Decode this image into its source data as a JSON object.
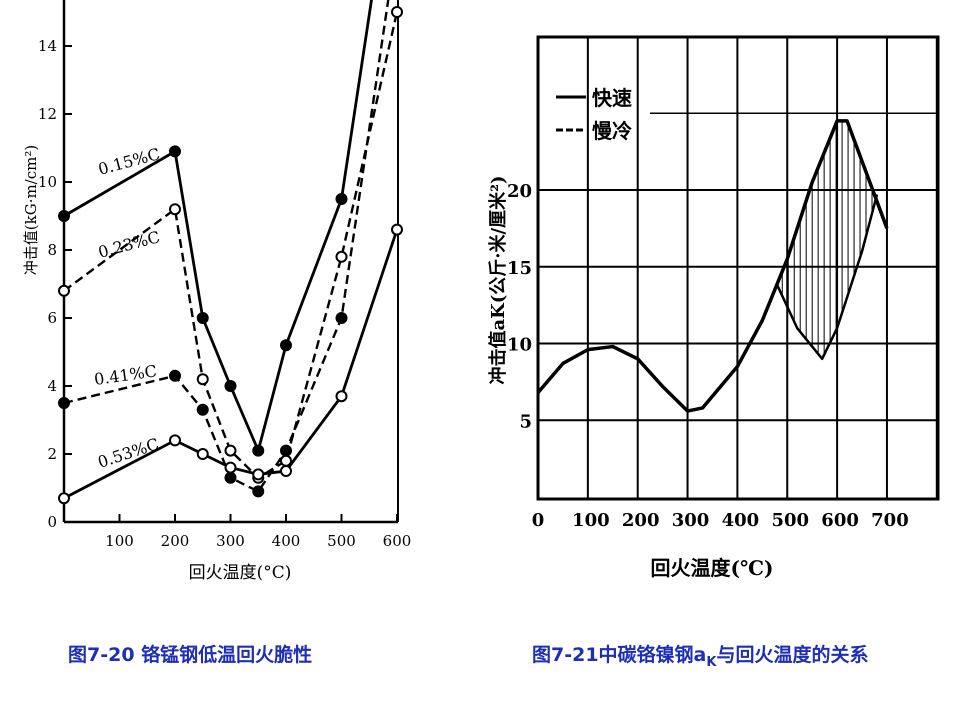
{
  "chart_data": [
    {
      "type": "line",
      "xlabel": "回火温度(°C)",
      "ylabel": "冲击值(kG·m/cm²)",
      "xlim": [
        0,
        600
      ],
      "ylim": [
        0,
        15
      ],
      "xticks": [
        100,
        200,
        300,
        400,
        500,
        600
      ],
      "yticks": [
        0,
        2,
        4,
        6,
        8,
        10,
        12,
        14
      ],
      "grid": false,
      "series": [
        {
          "name": "0.15%C",
          "style": "solid",
          "marker": "filled",
          "x": [
            0,
            200,
            250,
            300,
            350,
            400,
            500,
            560
          ],
          "y": [
            9,
            10.9,
            6,
            4,
            2.1,
            5.2,
            9.5,
            16
          ]
        },
        {
          "name": "0.23%C",
          "style": "dashed",
          "marker": "open",
          "x": [
            0,
            200,
            250,
            300,
            350,
            400,
            500,
            600
          ],
          "y": [
            6.8,
            9.2,
            4.2,
            2.1,
            1.3,
            1.8,
            7.8,
            15
          ]
        },
        {
          "name": "0.41%C",
          "style": "dashed",
          "marker": "filled",
          "x": [
            0,
            200,
            250,
            300,
            350,
            400,
            500,
            590
          ],
          "y": [
            3.5,
            4.3,
            3.3,
            1.3,
            0.9,
            2.1,
            6,
            16
          ]
        },
        {
          "name": "0.53%C",
          "style": "solid",
          "marker": "open",
          "x": [
            0,
            200,
            250,
            300,
            350,
            400,
            500,
            600
          ],
          "y": [
            0.7,
            2.4,
            2,
            1.6,
            1.4,
            1.5,
            3.7,
            8.6
          ]
        }
      ]
    },
    {
      "type": "line",
      "xlabel": "回火温度(℃)",
      "ylabel": "冲击值aK(公斤·米/厘米²)",
      "xlim": [
        0,
        800
      ],
      "ylim": [
        0,
        30
      ],
      "xticks": [
        0,
        100,
        200,
        300,
        400,
        500,
        600,
        700
      ],
      "yticks": [
        5,
        10,
        15,
        20
      ],
      "grid": true,
      "legend": "top-left",
      "series": [
        {
          "name": "快速",
          "style": "solid",
          "x": [
            0,
            50,
            100,
            150,
            200,
            250,
            300,
            330,
            400,
            450,
            500,
            550,
            600,
            620,
            660,
            700
          ],
          "y": [
            6.8,
            8.7,
            9.6,
            9.8,
            9,
            7.2,
            5.6,
            5.8,
            8.5,
            11.5,
            15.5,
            20.5,
            24.5,
            24.5,
            21,
            17.5
          ]
        },
        {
          "name": "慢冷",
          "style": "dashed",
          "x": [
            480,
            520,
            570,
            600,
            650,
            680
          ],
          "y": [
            13.8,
            11,
            9,
            11,
            16,
            19.7
          ]
        }
      ]
    }
  ],
  "captions": {
    "left": "图7-20 铬锰钢低温回火脆性",
    "right_prefix": "图7-21中碳铬镍钢a",
    "right_sub": "K",
    "right_suffix": "与回火温度的关系"
  }
}
